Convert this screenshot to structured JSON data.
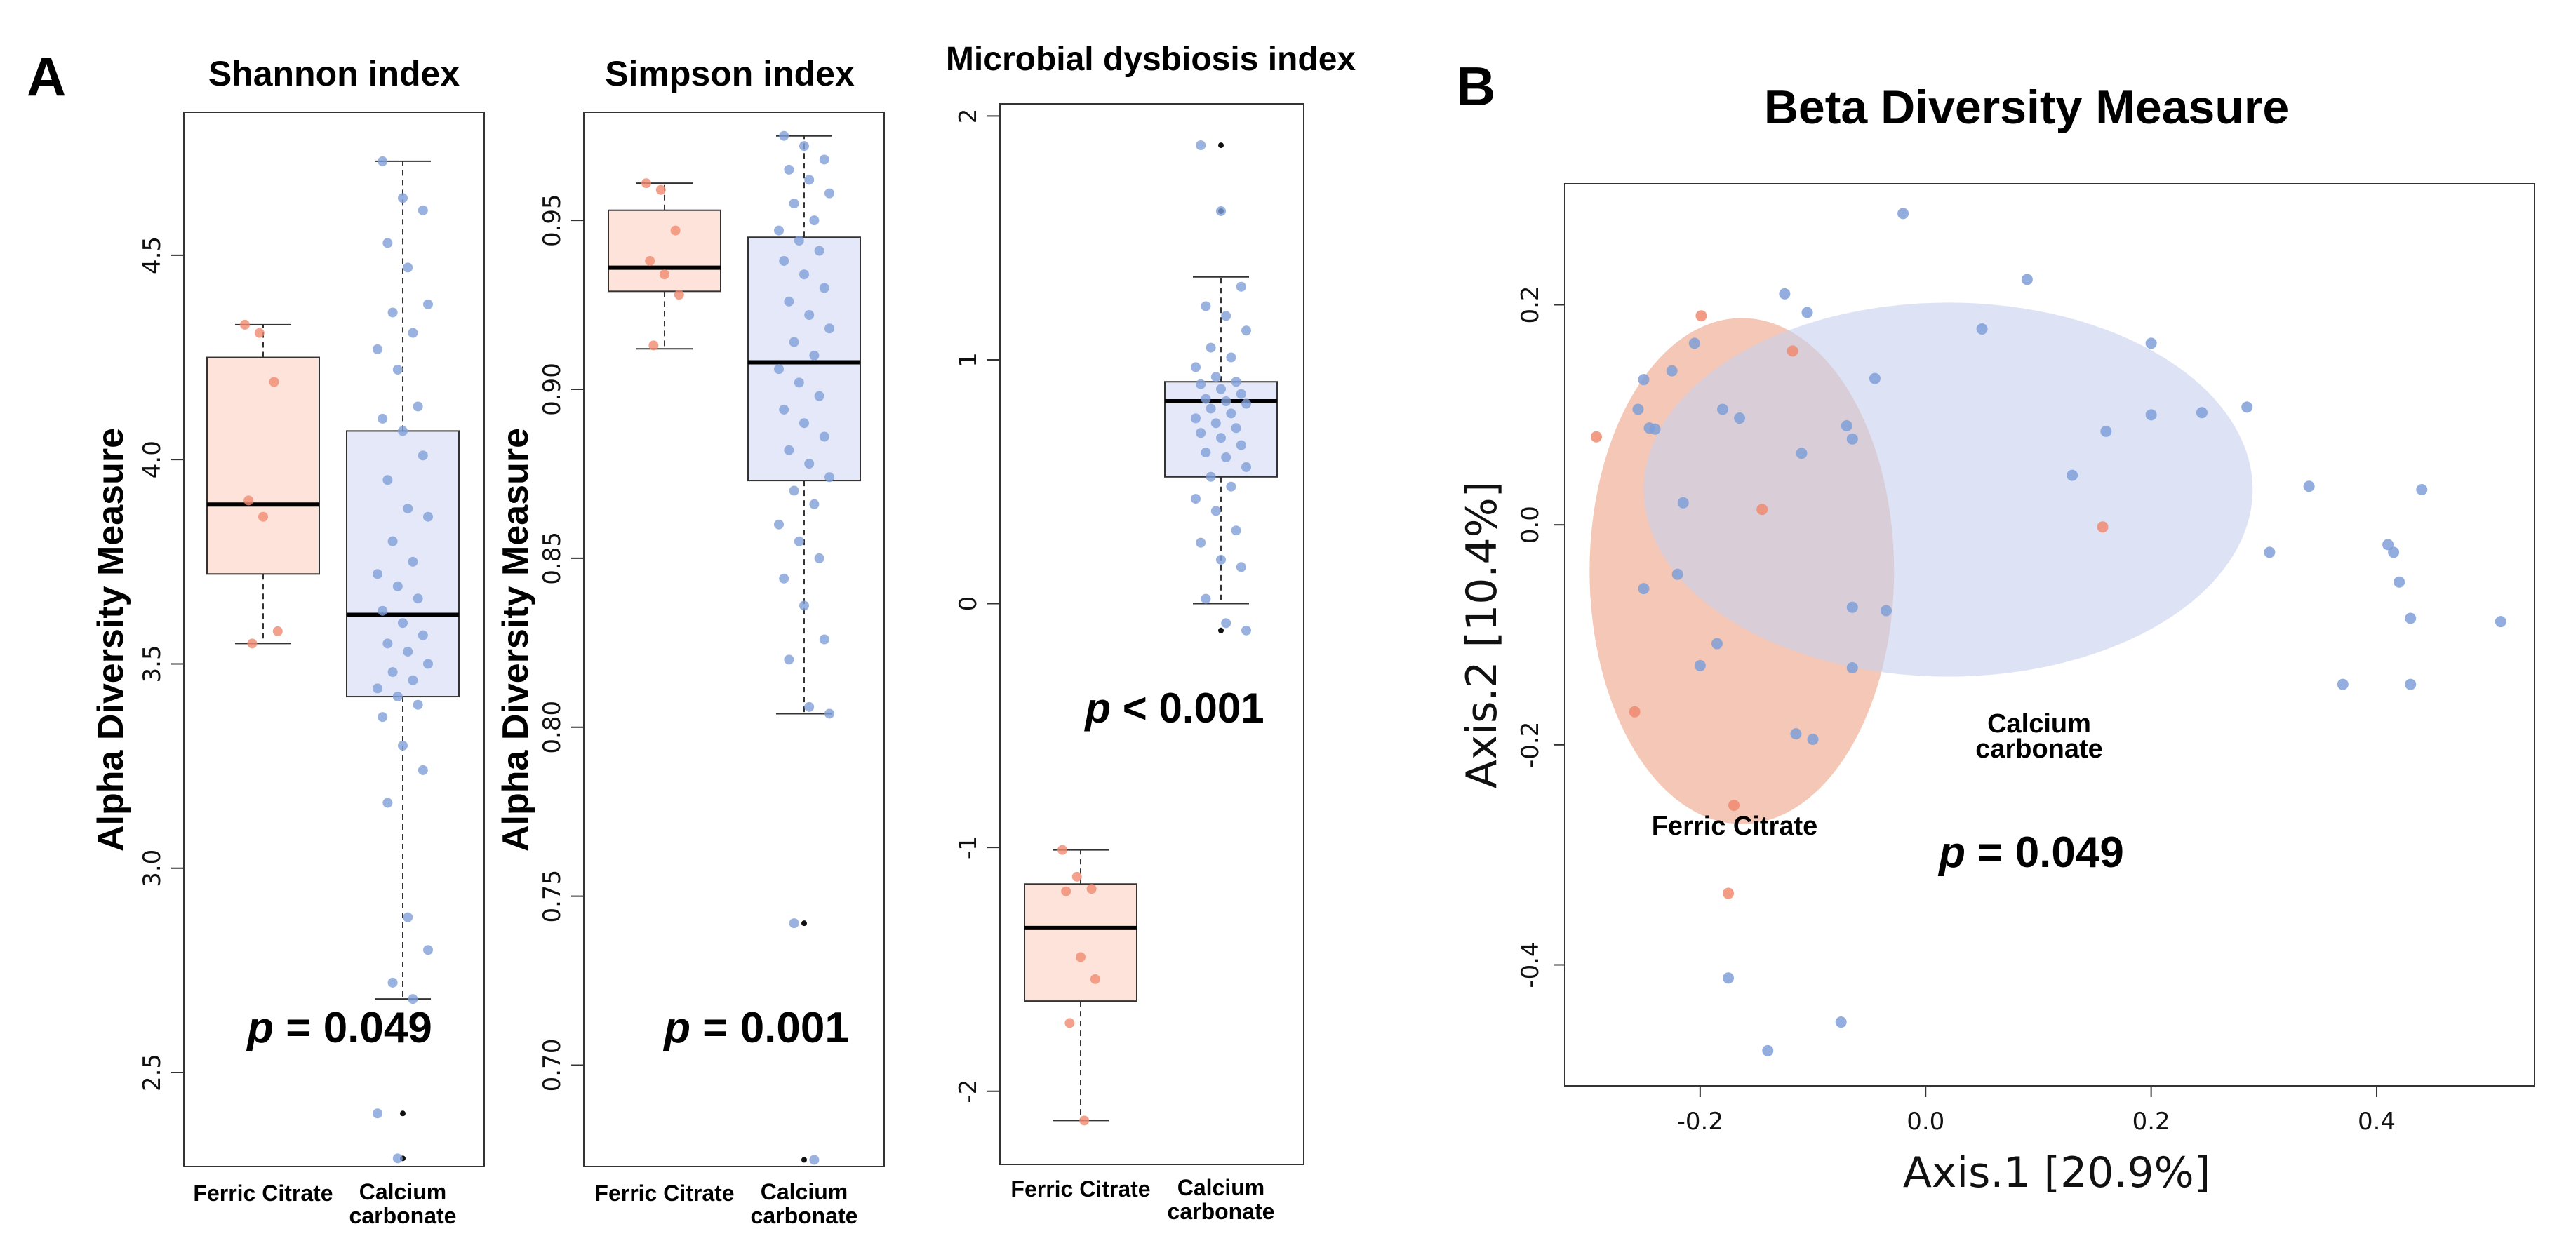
{
  "colors": {
    "ferric": "#f08a70",
    "ferric_fill": "#fde3d9",
    "calcium": "#7f9fd8",
    "calcium_fill": "#e4e8f8",
    "ellipse_ferric": "#f2b49e",
    "ellipse_calcium": "#c7d1ee"
  },
  "panels": {
    "a_label": "A",
    "b_label": "B"
  },
  "chart_data": [
    {
      "type": "box",
      "title": "Shannon index",
      "ylabel": "Alpha Diversity Measure",
      "categories": [
        "Ferric Citrate",
        "Calcium carbonate"
      ],
      "category_lines": [
        [
          "Ferric Citrate"
        ],
        [
          "Calcium",
          "carbonate"
        ]
      ],
      "ylim": [
        2.27,
        4.85
      ],
      "yticks": [
        2.5,
        3.0,
        3.5,
        4.0,
        4.5
      ],
      "ytick_labels": [
        "2.5",
        "3.0",
        "3.5",
        "4.0",
        "4.5"
      ],
      "p_prefix": "p",
      "p_value_text": " = 0.049",
      "boxes": [
        {
          "group": "Ferric Citrate",
          "min": 3.55,
          "q1": 3.72,
          "median": 3.89,
          "q3": 4.25,
          "max": 4.33,
          "outliers": []
        },
        {
          "group": "Calcium carbonate",
          "min": 2.68,
          "q1": 3.42,
          "median": 3.62,
          "q3": 4.07,
          "max": 4.73,
          "outliers": [
            2.4,
            2.29
          ]
        }
      ],
      "points": [
        {
          "group": "Ferric Citrate",
          "values": [
            4.33,
            4.31,
            4.19,
            3.9,
            3.86,
            3.58,
            3.55
          ]
        },
        {
          "group": "Calcium carbonate",
          "values": [
            4.73,
            4.64,
            4.61,
            4.53,
            4.47,
            4.38,
            4.36,
            4.31,
            4.27,
            4.22,
            4.13,
            4.1,
            4.07,
            4.01,
            3.95,
            3.88,
            3.86,
            3.8,
            3.75,
            3.72,
            3.69,
            3.66,
            3.63,
            3.6,
            3.57,
            3.55,
            3.53,
            3.5,
            3.48,
            3.46,
            3.44,
            3.42,
            3.4,
            3.37,
            3.3,
            3.24,
            3.16,
            2.88,
            2.8,
            2.72,
            2.68,
            2.4,
            2.29
          ]
        }
      ]
    },
    {
      "type": "box",
      "title": "Simpson index",
      "ylabel": "Alpha Diversity Measure",
      "categories": [
        "Ferric Citrate",
        "Calcium carbonate"
      ],
      "category_lines": [
        [
          "Ferric Citrate"
        ],
        [
          "Calcium",
          "carbonate"
        ]
      ],
      "ylim": [
        0.67,
        0.982
      ],
      "yticks": [
        0.7,
        0.75,
        0.8,
        0.85,
        0.9,
        0.95
      ],
      "ytick_labels": [
        "0.70",
        "0.75",
        "0.80",
        "0.85",
        "0.90",
        "0.95"
      ],
      "p_prefix": "p",
      "p_value_text": " = 0.001",
      "boxes": [
        {
          "group": "Ferric Citrate",
          "min": 0.912,
          "q1": 0.929,
          "median": 0.936,
          "q3": 0.953,
          "max": 0.961,
          "outliers": []
        },
        {
          "group": "Calcium carbonate",
          "min": 0.804,
          "q1": 0.873,
          "median": 0.908,
          "q3": 0.945,
          "max": 0.975,
          "outliers": [
            0.742,
            0.672
          ]
        }
      ],
      "points": [
        {
          "group": "Ferric Citrate",
          "values": [
            0.961,
            0.959,
            0.947,
            0.938,
            0.934,
            0.928,
            0.913
          ]
        },
        {
          "group": "Calcium carbonate",
          "values": [
            0.975,
            0.972,
            0.968,
            0.965,
            0.962,
            0.958,
            0.955,
            0.95,
            0.947,
            0.944,
            0.941,
            0.938,
            0.934,
            0.93,
            0.926,
            0.922,
            0.918,
            0.914,
            0.91,
            0.906,
            0.902,
            0.898,
            0.894,
            0.89,
            0.886,
            0.882,
            0.878,
            0.874,
            0.87,
            0.866,
            0.86,
            0.855,
            0.85,
            0.844,
            0.836,
            0.826,
            0.82,
            0.806,
            0.804,
            0.742,
            0.672
          ]
        }
      ]
    },
    {
      "type": "box",
      "title": "Microbial dysbiosis index",
      "ylabel": "",
      "categories": [
        "Ferric Citrate",
        "Calcium carbonate"
      ],
      "category_lines": [
        [
          "Ferric Citrate"
        ],
        [
          "Calcium",
          "carbonate"
        ]
      ],
      "ylim": [
        -2.3,
        2.05
      ],
      "yticks": [
        -2,
        -1,
        0,
        1,
        2
      ],
      "ytick_labels": [
        "-2",
        "-1",
        "0",
        "1",
        "2"
      ],
      "p_prefix": "p",
      "p_value_text": " < 0.001",
      "boxes": [
        {
          "group": "Ferric Citrate",
          "min": -2.12,
          "q1": -1.63,
          "median": -1.33,
          "q3": -1.15,
          "max": -1.01,
          "outliers": []
        },
        {
          "group": "Calcium carbonate",
          "min": 0.0,
          "q1": 0.52,
          "median": 0.83,
          "q3": 0.91,
          "max": 1.34,
          "outliers": [
            -0.11,
            1.61,
            1.88
          ]
        }
      ],
      "points": [
        {
          "group": "Ferric Citrate",
          "values": [
            -1.01,
            -1.12,
            -1.17,
            -1.18,
            -1.45,
            -1.54,
            -1.72,
            -2.12
          ]
        },
        {
          "group": "Calcium carbonate",
          "values": [
            1.88,
            1.61,
            1.3,
            1.22,
            1.18,
            1.12,
            1.05,
            1.01,
            0.97,
            0.93,
            0.91,
            0.9,
            0.88,
            0.86,
            0.84,
            0.83,
            0.82,
            0.8,
            0.78,
            0.76,
            0.74,
            0.72,
            0.7,
            0.68,
            0.65,
            0.62,
            0.6,
            0.56,
            0.52,
            0.48,
            0.43,
            0.38,
            0.3,
            0.25,
            0.18,
            0.15,
            0.02,
            -0.08,
            -0.11
          ]
        }
      ]
    },
    {
      "type": "scatter",
      "title": "Beta Diversity Measure",
      "xlabel": "Axis.1 [20.9%]",
      "ylabel": "Axis.2 [10.4%]",
      "xlim": [
        -0.32,
        0.54
      ],
      "ylim": [
        -0.51,
        0.31
      ],
      "xticks": [
        -0.2,
        0.0,
        0.2,
        0.4
      ],
      "xtick_labels": [
        "-0.2",
        "0.0",
        "0.2",
        "0.4"
      ],
      "yticks": [
        -0.4,
        -0.2,
        0.0,
        0.2
      ],
      "ytick_labels": [
        "-0.4",
        "-0.2",
        "0.0",
        "0.2"
      ],
      "p_prefix": "p",
      "p_value_text": " = 0.049",
      "groups": [
        {
          "name": "Ferric Citrate",
          "ellipse": {
            "cx": -0.163,
            "cy": -0.042,
            "rx": 0.135,
            "ry": 0.23
          }
        },
        {
          "name": "Calcium carbonate",
          "label_lines": [
            "Calcium",
            "carbonate"
          ],
          "ellipse": {
            "cx": 0.02,
            "cy": 0.032,
            "rx": 0.27,
            "ry": 0.17
          }
        }
      ],
      "series": [
        {
          "name": "Ferric Citrate",
          "points": [
            [
              -0.199,
              0.19
            ],
            [
              -0.292,
              0.08
            ],
            [
              -0.118,
              0.158
            ],
            [
              -0.145,
              0.014
            ],
            [
              0.157,
              -0.002
            ],
            [
              -0.258,
              -0.17
            ],
            [
              -0.17,
              -0.255
            ],
            [
              -0.175,
              -0.335
            ]
          ]
        },
        {
          "name": "Calcium carbonate",
          "points": [
            [
              -0.02,
              0.283
            ],
            [
              0.09,
              0.223
            ],
            [
              -0.125,
              0.21
            ],
            [
              -0.105,
              0.193
            ],
            [
              -0.205,
              0.165
            ],
            [
              0.05,
              0.178
            ],
            [
              0.2,
              0.165
            ],
            [
              -0.25,
              0.132
            ],
            [
              -0.225,
              0.14
            ],
            [
              -0.255,
              0.105
            ],
            [
              -0.245,
              0.088
            ],
            [
              -0.24,
              0.087
            ],
            [
              -0.18,
              0.105
            ],
            [
              -0.165,
              0.097
            ],
            [
              -0.07,
              0.09
            ],
            [
              -0.065,
              0.078
            ],
            [
              -0.11,
              0.065
            ],
            [
              -0.045,
              0.133
            ],
            [
              0.2,
              0.1
            ],
            [
              0.16,
              0.085
            ],
            [
              0.245,
              0.102
            ],
            [
              0.285,
              0.107
            ],
            [
              0.13,
              0.045
            ],
            [
              0.34,
              0.035
            ],
            [
              0.44,
              0.032
            ],
            [
              -0.215,
              0.02
            ],
            [
              -0.22,
              -0.045
            ],
            [
              -0.25,
              -0.058
            ],
            [
              -0.065,
              -0.075
            ],
            [
              -0.035,
              -0.078
            ],
            [
              0.305,
              -0.025
            ],
            [
              0.41,
              -0.018
            ],
            [
              0.415,
              -0.025
            ],
            [
              0.42,
              -0.052
            ],
            [
              0.43,
              -0.085
            ],
            [
              0.51,
              -0.088
            ],
            [
              -0.185,
              -0.108
            ],
            [
              -0.2,
              -0.128
            ],
            [
              -0.065,
              -0.13
            ],
            [
              0.37,
              -0.145
            ],
            [
              0.43,
              -0.145
            ],
            [
              -0.115,
              -0.19
            ],
            [
              -0.1,
              -0.195
            ],
            [
              -0.175,
              -0.412
            ],
            [
              -0.075,
              -0.452
            ],
            [
              -0.14,
              -0.478
            ]
          ]
        }
      ]
    }
  ]
}
